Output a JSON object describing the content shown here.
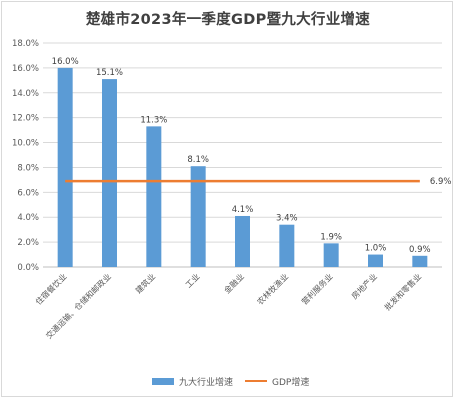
{
  "colors": {
    "bar": "#5b9bd5",
    "line": "#ed7d31",
    "grid": "#d9d9d9",
    "axis": "#bfbfbf"
  },
  "chart_data": {
    "type": "bar",
    "title": "楚雄市2023年一季度GDP暨九大行业增速",
    "categories": [
      "住宿餐饮业",
      "交通运输、仓储和邮政业",
      "建筑业",
      "工业",
      "金融业",
      "农林牧渔业",
      "营利服务业",
      "房地产业",
      "批发和零售业"
    ],
    "series": [
      {
        "name": "九大行业增速",
        "type": "bar",
        "values": [
          16.0,
          15.1,
          11.3,
          8.1,
          4.1,
          3.4,
          1.9,
          1.0,
          0.9
        ],
        "labels": [
          "16.0%",
          "15.1%",
          "11.3%",
          "8.1%",
          "4.1%",
          "3.4%",
          "1.9%",
          "1.0%",
          "0.9%"
        ]
      },
      {
        "name": "GDP增速",
        "type": "line",
        "value": 6.9,
        "label": "6.9%"
      }
    ],
    "ylim": [
      0,
      18
    ],
    "yticks": [
      "0.0%",
      "2.0%",
      "4.0%",
      "6.0%",
      "8.0%",
      "10.0%",
      "12.0%",
      "14.0%",
      "16.0%",
      "18.0%"
    ],
    "grid": true,
    "legend": "bottom"
  }
}
